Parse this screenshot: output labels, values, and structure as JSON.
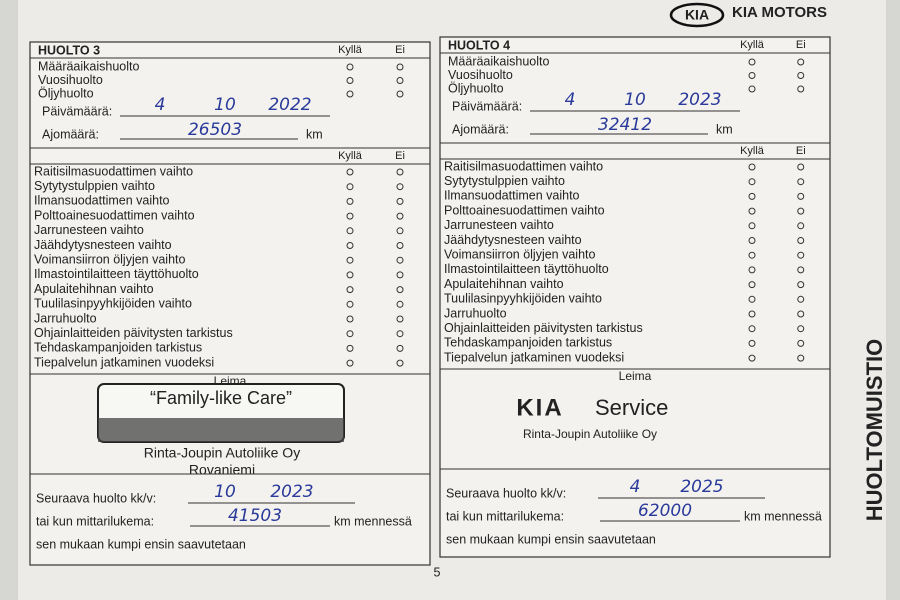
{
  "brand": {
    "logo": "KIA",
    "name": "KIA MOTORS"
  },
  "side_title": "HUOLTOMUISTIO",
  "page_number": "5",
  "cards": [
    {
      "title": "HUOLTO 3",
      "yes": "Kyllä",
      "no": "Ei",
      "basic_items": [
        "Määräaikaishuolto",
        "Vuosihuolto",
        "Öljyhuolto"
      ],
      "date_label": "Päivämäärä:",
      "date": [
        "4",
        "10",
        "2022"
      ],
      "mileage_label": "Ajomäärä:",
      "mileage": "26503",
      "unit": "km",
      "items": [
        "Raitisilmasuodattimen vaihto",
        "Sytytystulppien vaihto",
        "Ilmansuodattimen vaihto",
        "Polttoainesuodattimen vaihto",
        "Jarrunesteen vaihto",
        "Jäähdytysnesteen vaihto",
        "Voimansiirron öljyjen vaihto",
        "Ilmastointilaitteen täyttöhuolto",
        "Apulaitehihnan vaihto",
        "Tuulilasinpyyhkijöiden vaihto",
        "Jarruhuolto",
        "Ohjainlaitteiden päivitysten tarkistus",
        "Tehdaskampanjoiden tarkistus",
        "Tiepalvelun jatkaminen vuodeksi"
      ],
      "stamp_label": "Leima",
      "stamp": [
        "“Family-like Care”",
        "Rinta-Joupin Autoliike Oy",
        "Rovaniemi"
      ],
      "next_label": "Seuraava huolto kk/v:",
      "next": [
        "10",
        "2023"
      ],
      "odometer_label": "tai kun mittarilukema:",
      "odometer": "41503",
      "odometer_unit": "km mennessä",
      "footnote": "sen mukaan kumpi ensin saavutetaan"
    },
    {
      "title": "HUOLTO 4",
      "yes": "Kyllä",
      "no": "Ei",
      "basic_items": [
        "Määräaikaishuolto",
        "Vuosihuolto",
        "Öljyhuolto"
      ],
      "date_label": "Päivämäärä:",
      "date": [
        "4",
        "10",
        "2023"
      ],
      "mileage_label": "Ajomäärä:",
      "mileage": "32412",
      "unit": "km",
      "items": [
        "Raitisilmasuodattimen vaihto",
        "Sytytystulppien vaihto",
        "Ilmansuodattimen vaihto",
        "Polttoainesuodattimen vaihto",
        "Jarrunesteen vaihto",
        "Jäähdytysnesteen vaihto",
        "Voimansiirron öljyjen vaihto",
        "Ilmastointilaitteen täyttöhuolto",
        "Apulaitehihnan vaihto",
        "Tuulilasinpyyhkijöiden vaihto",
        "Jarruhuolto",
        "Ohjainlaitteiden päivitysten tarkistus",
        "Tehdaskampanjoiden tarkistus",
        "Tiepalvelun jatkaminen vuodeksi"
      ],
      "stamp_label": "Leima",
      "stamp": [
        "KIA",
        "Service",
        "Rinta-Joupin Autoliike Oy"
      ],
      "next_label": "Seuraava huolto kk/v:",
      "next": [
        "4",
        "2025"
      ],
      "odometer_label": "tai kun mittarilukema:",
      "odometer": "62000",
      "odometer_unit": "km mennessä",
      "footnote": "sen mukaan kumpi ensin saavutetaan"
    }
  ]
}
